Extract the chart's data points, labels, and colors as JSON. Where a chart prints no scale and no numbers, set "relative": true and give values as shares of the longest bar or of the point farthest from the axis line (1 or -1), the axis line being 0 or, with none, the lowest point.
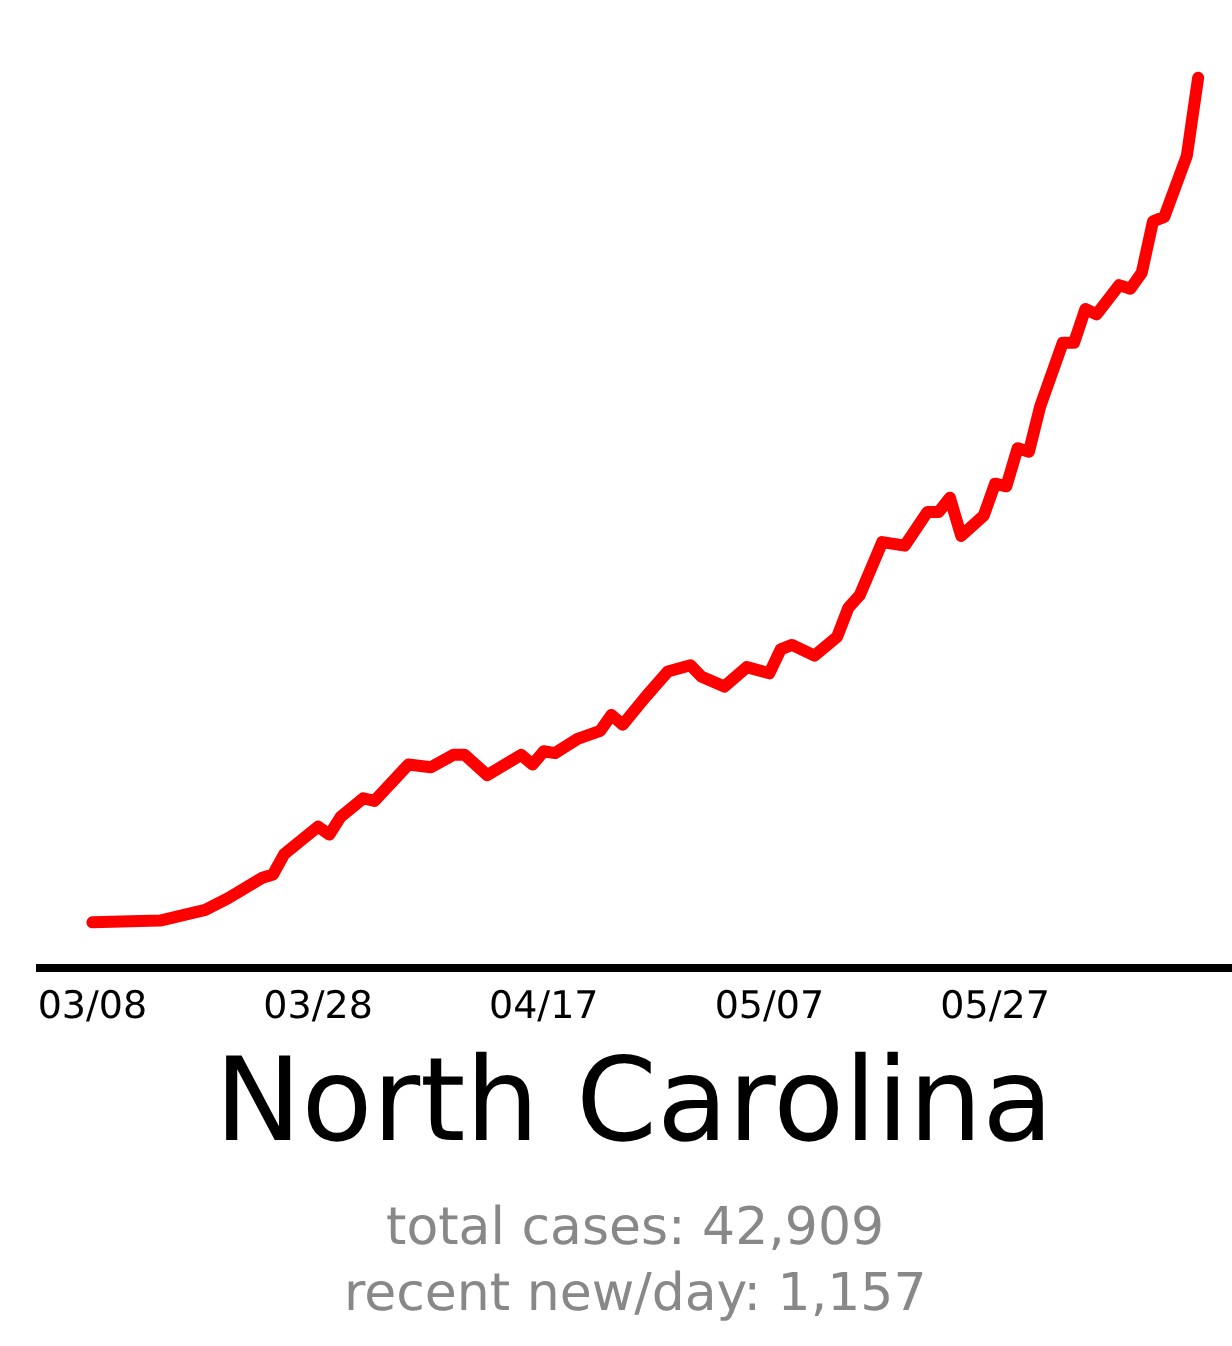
{
  "chart_data": {
    "type": "line",
    "title": "North Carolina",
    "relative": true,
    "annotations": [
      "total cases: 42,909",
      "recent new/day: 1,157"
    ],
    "x": [
      "--03-08",
      "--03-14",
      "--03-18",
      "--03-20",
      "--03-23",
      "--03-24",
      "--03-25",
      "--03-28",
      "--03-29",
      "--03-30",
      "--04-01",
      "--04-02",
      "--04-05",
      "--04-07",
      "--04-09",
      "--04-10",
      "--04-12",
      "--04-15",
      "--04-16",
      "--04-17",
      "--04-18",
      "--04-20",
      "--04-22",
      "--04-23",
      "--04-24",
      "--04-26",
      "--04-28",
      "--04-30",
      "--05-01",
      "--05-03",
      "--05-05",
      "--05-07",
      "--05-08",
      "--05-09",
      "--05-11",
      "--05-13",
      "--05-14",
      "--05-15",
      "--05-17",
      "--05-19",
      "--05-21",
      "--05-22",
      "--05-23",
      "--05-24",
      "--05-26",
      "--05-27",
      "--05-28",
      "--05-29",
      "--05-30",
      "--05-31",
      "--06-02",
      "--06-03",
      "--06-04",
      "--06-05",
      "--06-07",
      "--06-08",
      "--06-09",
      "--06-10",
      "--06-11",
      "--06-13",
      "--06-14"
    ],
    "series": [
      {
        "color": "#ff0000",
        "values": [
          0.047,
          0.049,
          0.061,
          0.074,
          0.097,
          0.101,
          0.124,
          0.155,
          0.146,
          0.166,
          0.187,
          0.184,
          0.225,
          0.222,
          0.236,
          0.236,
          0.213,
          0.236,
          0.225,
          0.24,
          0.238,
          0.254,
          0.263,
          0.281,
          0.27,
          0.301,
          0.33,
          0.337,
          0.324,
          0.313,
          0.335,
          0.328,
          0.355,
          0.36,
          0.348,
          0.369,
          0.402,
          0.416,
          0.476,
          0.472,
          0.51,
          0.51,
          0.526,
          0.483,
          0.506,
          0.542,
          0.539,
          0.582,
          0.578,
          0.629,
          0.701,
          0.701,
          0.739,
          0.733,
          0.766,
          0.762,
          0.78,
          0.838,
          0.843,
          0.912,
          1
        ]
      }
    ],
    "xlim": [
      "--03-03",
      "--06-17"
    ],
    "xticks": [
      {
        "value": "--03-08",
        "label": "03/08"
      },
      {
        "value": "--03-28",
        "label": "03/28"
      },
      {
        "value": "--04-17",
        "label": "04/17"
      },
      {
        "value": "--05-07",
        "label": "05/07"
      },
      {
        "value": "--05-27",
        "label": "05/27"
      }
    ]
  }
}
